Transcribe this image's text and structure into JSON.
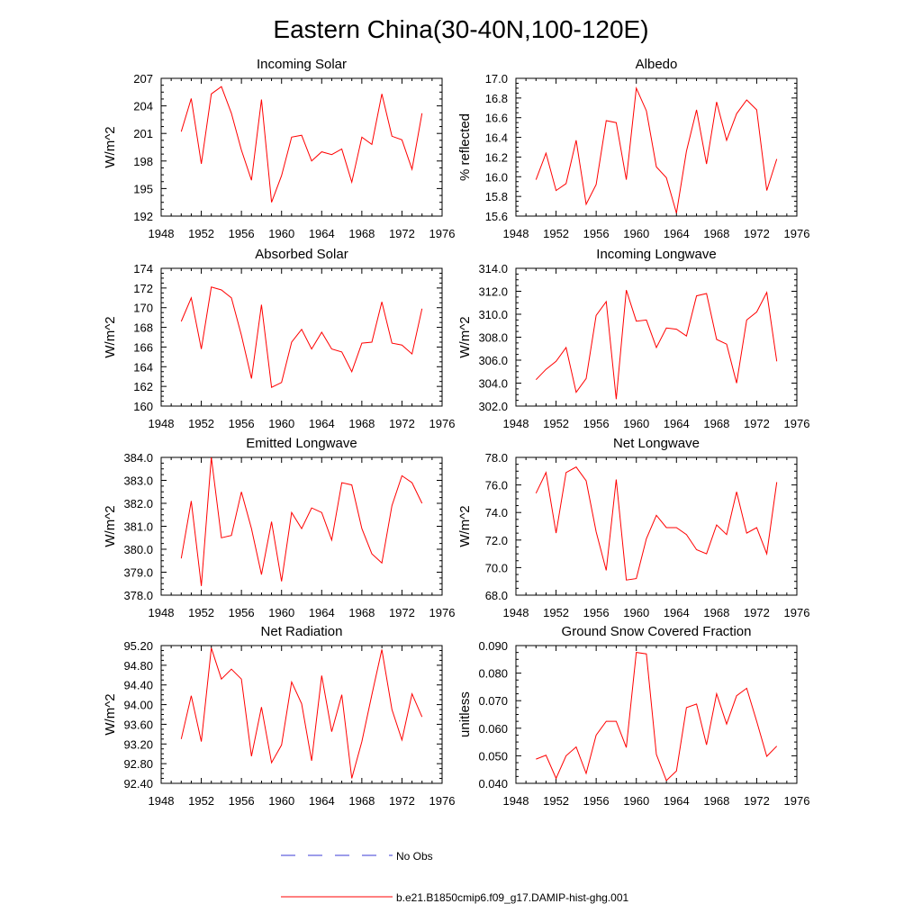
{
  "figure": {
    "title": "Eastern China(30-40N,100-120E)",
    "legend": [
      {
        "label": "No Obs",
        "color": "#3b3bd6",
        "style": "dashed"
      },
      {
        "label": "b.e21.B1850cmip6.f09_g17.DAMIP-hist-ghg.001",
        "color": "#ff0000",
        "style": "solid"
      }
    ]
  },
  "chart_data": [
    {
      "type": "line",
      "title": "Incoming Solar",
      "ylabel": "W/m^2",
      "xlim": [
        1948,
        1976
      ],
      "xticks": [
        "1948",
        "1952",
        "1956",
        "1960",
        "1964",
        "1968",
        "1972",
        "1976"
      ],
      "ylim": [
        192,
        207
      ],
      "yticks": [
        "192",
        "195",
        "198",
        "201",
        "204",
        "207"
      ],
      "series": [
        {
          "color": "#ff0000",
          "x": [
            1950,
            1951,
            1952,
            1953,
            1954,
            1955,
            1956,
            1957,
            1958,
            1959,
            1960,
            1961,
            1962,
            1963,
            1964,
            1965,
            1966,
            1967,
            1968,
            1969,
            1970,
            1971,
            1972,
            1973,
            1974
          ],
          "values": [
            201.2,
            204.8,
            197.7,
            205.3,
            206.1,
            203.2,
            199.2,
            195.9,
            204.7,
            193.5,
            196.4,
            200.6,
            200.8,
            198.0,
            199.0,
            198.7,
            199.3,
            195.7,
            200.6,
            199.8,
            205.3,
            200.7,
            200.3,
            197.1,
            203.2
          ]
        }
      ]
    },
    {
      "type": "line",
      "title": "Albedo",
      "ylabel": "% reflected",
      "xlim": [
        1948,
        1976
      ],
      "xticks": [
        "1948",
        "1952",
        "1956",
        "1960",
        "1964",
        "1968",
        "1972",
        "1976"
      ],
      "ylim": [
        15.6,
        17.0
      ],
      "yticks": [
        "15.6",
        "15.8",
        "16.0",
        "16.2",
        "16.4",
        "16.6",
        "16.8",
        "17.0"
      ],
      "series": [
        {
          "color": "#ff0000",
          "x": [
            1950,
            1951,
            1952,
            1953,
            1954,
            1955,
            1956,
            1957,
            1958,
            1959,
            1960,
            1961,
            1962,
            1963,
            1964,
            1965,
            1966,
            1967,
            1968,
            1969,
            1970,
            1971,
            1972,
            1973,
            1974
          ],
          "values": [
            15.97,
            16.24,
            15.86,
            15.93,
            16.37,
            15.72,
            15.92,
            16.57,
            16.55,
            15.97,
            16.9,
            16.67,
            16.1,
            15.99,
            15.63,
            16.26,
            16.68,
            16.13,
            16.76,
            16.37,
            16.64,
            16.78,
            16.68,
            15.86,
            16.18
          ]
        }
      ]
    },
    {
      "type": "line",
      "title": "Absorbed Solar",
      "ylabel": "W/m^2",
      "xlim": [
        1948,
        1976
      ],
      "xticks": [
        "1948",
        "1952",
        "1956",
        "1960",
        "1964",
        "1968",
        "1972",
        "1976"
      ],
      "ylim": [
        160,
        174
      ],
      "yticks": [
        "160",
        "162",
        "164",
        "166",
        "168",
        "170",
        "172",
        "174"
      ],
      "series": [
        {
          "color": "#ff0000",
          "x": [
            1950,
            1951,
            1952,
            1953,
            1954,
            1955,
            1956,
            1957,
            1958,
            1959,
            1960,
            1961,
            1962,
            1963,
            1964,
            1965,
            1966,
            1967,
            1968,
            1969,
            1970,
            1971,
            1972,
            1973,
            1974
          ],
          "values": [
            168.6,
            171.0,
            165.8,
            172.1,
            171.8,
            171.0,
            167.2,
            162.8,
            170.3,
            161.9,
            162.4,
            166.5,
            167.8,
            165.8,
            167.5,
            165.8,
            165.5,
            163.5,
            166.4,
            166.5,
            170.6,
            166.4,
            166.2,
            165.3,
            169.9
          ]
        }
      ]
    },
    {
      "type": "line",
      "title": "Incoming Longwave",
      "ylabel": "W/m^2",
      "xlim": [
        1948,
        1976
      ],
      "xticks": [
        "1948",
        "1952",
        "1956",
        "1960",
        "1964",
        "1968",
        "1972",
        "1976"
      ],
      "ylim": [
        302.0,
        314.0
      ],
      "yticks": [
        "302.0",
        "304.0",
        "306.0",
        "308.0",
        "310.0",
        "312.0",
        "314.0"
      ],
      "series": [
        {
          "color": "#ff0000",
          "x": [
            1950,
            1951,
            1952,
            1953,
            1954,
            1955,
            1956,
            1957,
            1958,
            1959,
            1960,
            1961,
            1962,
            1963,
            1964,
            1965,
            1966,
            1967,
            1968,
            1969,
            1970,
            1971,
            1972,
            1973,
            1974
          ],
          "values": [
            304.3,
            305.2,
            305.9,
            307.1,
            303.2,
            304.4,
            309.9,
            311.1,
            302.6,
            312.1,
            309.4,
            309.5,
            307.1,
            308.8,
            308.7,
            308.1,
            311.6,
            311.8,
            307.8,
            307.4,
            304.0,
            309.5,
            310.2,
            311.9,
            305.9
          ]
        }
      ]
    },
    {
      "type": "line",
      "title": "Emitted Longwave",
      "ylabel": "W/m^2",
      "xlim": [
        1948,
        1976
      ],
      "xticks": [
        "1948",
        "1952",
        "1956",
        "1960",
        "1964",
        "1968",
        "1972",
        "1976"
      ],
      "ylim": [
        378.0,
        384.0
      ],
      "yticks": [
        "378.0",
        "379.0",
        "380.0",
        "381.0",
        "382.0",
        "383.0",
        "384.0"
      ],
      "series": [
        {
          "color": "#ff0000",
          "x": [
            1950,
            1951,
            1952,
            1953,
            1954,
            1955,
            1956,
            1957,
            1958,
            1959,
            1960,
            1961,
            1962,
            1963,
            1964,
            1965,
            1966,
            1967,
            1968,
            1969,
            1970,
            1971,
            1972,
            1973,
            1974
          ],
          "values": [
            379.6,
            382.1,
            378.4,
            384.0,
            380.5,
            380.6,
            382.5,
            380.9,
            378.9,
            381.2,
            378.6,
            381.6,
            380.9,
            381.8,
            381.6,
            380.4,
            382.9,
            382.8,
            380.9,
            379.8,
            379.4,
            381.9,
            383.2,
            382.9,
            382.0
          ]
        }
      ]
    },
    {
      "type": "line",
      "title": "Net Longwave",
      "ylabel": "W/m^2",
      "xlim": [
        1948,
        1976
      ],
      "xticks": [
        "1948",
        "1952",
        "1956",
        "1960",
        "1964",
        "1968",
        "1972",
        "1976"
      ],
      "ylim": [
        68.0,
        78.0
      ],
      "yticks": [
        "68.0",
        "70.0",
        "72.0",
        "74.0",
        "76.0",
        "78.0"
      ],
      "series": [
        {
          "color": "#ff0000",
          "x": [
            1950,
            1951,
            1952,
            1953,
            1954,
            1955,
            1956,
            1957,
            1958,
            1959,
            1960,
            1961,
            1962,
            1963,
            1964,
            1965,
            1966,
            1967,
            1968,
            1969,
            1970,
            1971,
            1972,
            1973,
            1974
          ],
          "values": [
            75.4,
            76.9,
            72.5,
            76.9,
            77.3,
            76.3,
            72.6,
            69.8,
            76.4,
            69.1,
            69.2,
            72.1,
            73.8,
            72.9,
            72.9,
            72.4,
            71.3,
            71.0,
            73.1,
            72.4,
            75.5,
            72.5,
            72.9,
            71.0,
            76.2
          ]
        }
      ]
    },
    {
      "type": "line",
      "title": "Net Radiation",
      "ylabel": "W/m^2",
      "xlim": [
        1948,
        1976
      ],
      "xticks": [
        "1948",
        "1952",
        "1956",
        "1960",
        "1964",
        "1968",
        "1972",
        "1976"
      ],
      "ylim": [
        92.4,
        95.2
      ],
      "yticks": [
        "92.40",
        "92.80",
        "93.20",
        "93.60",
        "94.00",
        "94.40",
        "94.80",
        "95.20"
      ],
      "series": [
        {
          "color": "#ff0000",
          "x": [
            1950,
            1951,
            1952,
            1953,
            1954,
            1955,
            1956,
            1957,
            1958,
            1959,
            1960,
            1961,
            1962,
            1963,
            1964,
            1965,
            1966,
            1967,
            1968,
            1969,
            1970,
            1971,
            1972,
            1973,
            1974
          ],
          "values": [
            93.3,
            94.18,
            93.25,
            95.15,
            94.52,
            94.72,
            94.52,
            92.95,
            93.95,
            92.82,
            93.18,
            94.46,
            94.02,
            92.86,
            94.59,
            93.45,
            94.2,
            92.5,
            93.25,
            94.2,
            95.12,
            93.9,
            93.28,
            94.22,
            93.75
          ]
        }
      ]
    },
    {
      "type": "line",
      "title": "Ground Snow Covered Fraction",
      "ylabel": "unitless",
      "xlim": [
        1948,
        1976
      ],
      "xticks": [
        "1948",
        "1952",
        "1956",
        "1960",
        "1964",
        "1968",
        "1972",
        "1976"
      ],
      "ylim": [
        0.04,
        0.09
      ],
      "yticks": [
        "0.040",
        "0.050",
        "0.060",
        "0.070",
        "0.080",
        "0.090"
      ],
      "series": [
        {
          "color": "#ff0000",
          "x": [
            1950,
            1951,
            1952,
            1953,
            1954,
            1955,
            1956,
            1957,
            1958,
            1959,
            1960,
            1961,
            1962,
            1963,
            1964,
            1965,
            1966,
            1967,
            1968,
            1969,
            1970,
            1971,
            1972,
            1973,
            1974
          ],
          "values": [
            0.0488,
            0.0502,
            0.0418,
            0.05,
            0.0532,
            0.0436,
            0.0575,
            0.0625,
            0.0625,
            0.053,
            0.0875,
            0.087,
            0.0505,
            0.041,
            0.0445,
            0.0675,
            0.0688,
            0.054,
            0.0725,
            0.0615,
            0.0718,
            0.0745,
            0.0625,
            0.0498,
            0.0535
          ]
        }
      ]
    }
  ]
}
